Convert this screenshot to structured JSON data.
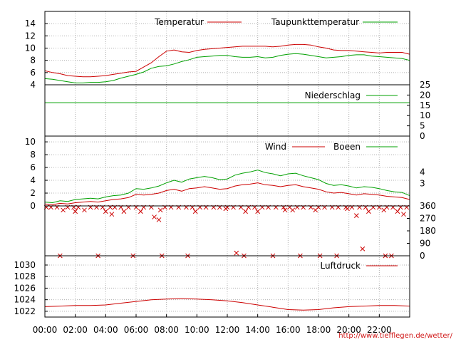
{
  "credit": "http://www.tiefflegen.de/wetter/",
  "x_ticks": [
    "00:00",
    "02:00",
    "04:00",
    "06:00",
    "08:00",
    "10:00",
    "12:00",
    "14:00",
    "16:00",
    "18:00",
    "20:00",
    "22:00"
  ],
  "colors": {
    "red": "#cc0000",
    "green": "#00a000",
    "grid": "#b0b0b0",
    "axis": "#000000"
  },
  "chart_data": [
    {
      "type": "line",
      "panel": "temperature",
      "ylim": [
        4,
        16
      ],
      "y_ticks": [
        "4",
        "6",
        "8",
        "10",
        "12",
        "14"
      ],
      "legend_placement": "top-right",
      "series": [
        {
          "name": "Temperatur",
          "color": "#cc0000",
          "x": [
            0,
            0.5,
            1,
            1.5,
            2,
            2.5,
            3,
            3.5,
            4,
            4.5,
            5,
            5.5,
            6,
            6.5,
            7,
            7.5,
            8,
            8.5,
            9,
            9.5,
            10,
            10.5,
            11,
            11.5,
            12,
            12.5,
            13,
            13.5,
            14,
            14.5,
            15,
            15.5,
            16,
            16.5,
            17,
            17.5,
            18,
            18.5,
            19,
            19.5,
            20,
            20.5,
            21,
            21.5,
            22,
            22.5,
            23,
            23.5,
            24
          ],
          "y": [
            6.3,
            6.0,
            5.8,
            5.5,
            5.4,
            5.3,
            5.3,
            5.4,
            5.5,
            5.7,
            5.9,
            6.1,
            6.2,
            6.9,
            7.6,
            8.6,
            9.5,
            9.7,
            9.4,
            9.3,
            9.6,
            9.8,
            9.9,
            10.0,
            10.1,
            10.2,
            10.3,
            10.3,
            10.3,
            10.3,
            10.2,
            10.3,
            10.5,
            10.6,
            10.6,
            10.5,
            10.2,
            10.0,
            9.7,
            9.6,
            9.6,
            9.5,
            9.4,
            9.3,
            9.2,
            9.3,
            9.3,
            9.3,
            9.0
          ]
        },
        {
          "name": "Taupunkttemperatur",
          "color": "#00a000",
          "x": [
            0,
            0.5,
            1,
            1.5,
            2,
            2.5,
            3,
            3.5,
            4,
            4.5,
            5,
            5.5,
            6,
            6.5,
            7,
            7.5,
            8,
            8.5,
            9,
            9.5,
            10,
            10.5,
            11,
            11.5,
            12,
            12.5,
            13,
            13.5,
            14,
            14.5,
            15,
            15.5,
            16,
            16.5,
            17,
            17.5,
            18,
            18.5,
            19,
            19.5,
            20,
            20.5,
            21,
            21.5,
            22,
            22.5,
            23,
            23.5,
            24
          ],
          "y": [
            5.0,
            4.9,
            4.7,
            4.5,
            4.3,
            4.3,
            4.4,
            4.4,
            4.5,
            4.7,
            5.1,
            5.4,
            5.7,
            6.1,
            6.7,
            7.0,
            7.1,
            7.4,
            7.8,
            8.1,
            8.5,
            8.6,
            8.7,
            8.8,
            8.8,
            8.6,
            8.5,
            8.5,
            8.6,
            8.4,
            8.5,
            8.8,
            9.0,
            9.1,
            9.0,
            8.8,
            8.6,
            8.4,
            8.5,
            8.6,
            8.8,
            8.9,
            8.9,
            8.7,
            8.6,
            8.5,
            8.4,
            8.3,
            8.0
          ]
        }
      ]
    },
    {
      "type": "line",
      "panel": "precipitation",
      "ylim": [
        0,
        25
      ],
      "y_ticks_right": [
        "0",
        "5",
        "10",
        "15",
        "20",
        "25"
      ],
      "legend_placement": "top-right",
      "series": [
        {
          "name": "Niederschlag",
          "color": "#00a000",
          "x": [
            0,
            24
          ],
          "y": [
            16.3,
            16.3
          ]
        }
      ]
    },
    {
      "type": "line",
      "panel": "wind",
      "ylim": [
        0,
        10
      ],
      "y_ticks": [
        "0",
        "2",
        "4",
        "6",
        "8",
        "10"
      ],
      "y_ticks_right": [
        "3",
        "4"
      ],
      "legend_placement": "top-right",
      "series": [
        {
          "name": "Wind",
          "color": "#cc0000",
          "x": [
            0,
            0.5,
            1,
            1.5,
            2,
            2.5,
            3,
            3.5,
            4,
            4.5,
            5,
            5.5,
            6,
            6.5,
            7,
            7.5,
            8,
            8.5,
            9,
            9.5,
            10,
            10.5,
            11,
            11.5,
            12,
            12.5,
            13,
            13.5,
            14,
            14.5,
            15,
            15.5,
            16,
            16.5,
            17,
            17.5,
            18,
            18.5,
            19,
            19.5,
            20,
            20.5,
            21,
            21.5,
            22,
            22.5,
            23,
            23.5,
            24
          ],
          "y": [
            0.3,
            0.2,
            0.4,
            0.3,
            0.5,
            0.6,
            0.7,
            0.6,
            0.8,
            1.0,
            1.1,
            1.3,
            1.8,
            1.7,
            1.8,
            2.0,
            2.4,
            2.6,
            2.3,
            2.7,
            2.8,
            3.0,
            2.8,
            2.6,
            2.7,
            3.1,
            3.3,
            3.4,
            3.6,
            3.3,
            3.2,
            3.0,
            3.2,
            3.3,
            3.0,
            2.8,
            2.6,
            2.2,
            2.0,
            2.1,
            1.9,
            1.7,
            1.9,
            1.8,
            1.7,
            1.5,
            1.4,
            1.3,
            1.0
          ]
        },
        {
          "name": "Boeen",
          "color": "#00a000",
          "x": [
            0,
            0.5,
            1,
            1.5,
            2,
            2.5,
            3,
            3.5,
            4,
            4.5,
            5,
            5.5,
            6,
            6.5,
            7,
            7.5,
            8,
            8.5,
            9,
            9.5,
            10,
            10.5,
            11,
            11.5,
            12,
            12.5,
            13,
            13.5,
            14,
            14.5,
            15,
            15.5,
            16,
            16.5,
            17,
            17.5,
            18,
            18.5,
            19,
            19.5,
            20,
            20.5,
            21,
            21.5,
            22,
            22.5,
            23,
            23.5,
            24
          ],
          "y": [
            0.6,
            0.5,
            0.8,
            0.7,
            1.0,
            1.1,
            1.2,
            1.1,
            1.4,
            1.6,
            1.7,
            2.0,
            2.7,
            2.6,
            2.8,
            3.1,
            3.6,
            4.0,
            3.7,
            4.2,
            4.4,
            4.6,
            4.4,
            4.1,
            4.2,
            4.8,
            5.1,
            5.3,
            5.6,
            5.2,
            5.0,
            4.7,
            5.0,
            5.1,
            4.7,
            4.4,
            4.1,
            3.5,
            3.2,
            3.3,
            3.1,
            2.8,
            3.0,
            2.9,
            2.7,
            2.4,
            2.2,
            2.1,
            1.6
          ]
        }
      ]
    },
    {
      "type": "scatter",
      "panel": "wind_direction",
      "ylim": [
        0,
        360
      ],
      "y_ticks_right": [
        "0",
        "90",
        "180",
        "270",
        "360"
      ],
      "series": [
        {
          "name": "",
          "color": "#cc0000",
          "marker": "x",
          "x": [
            0.1,
            0.4,
            0.8,
            1.2,
            1.5,
            1.9,
            2.2,
            2.6,
            3.0,
            3.4,
            3.8,
            4.3,
            4.6,
            5.0,
            5.5,
            6.0,
            6.5,
            7.0,
            7.6,
            7.9,
            8.3,
            8.8,
            9.3,
            9.7,
            10.2,
            10.6,
            11.1,
            11.5,
            12.0,
            12.4,
            12.9,
            13.4,
            13.8,
            14.3,
            14.7,
            15.2,
            15.7,
            16.1,
            16.6,
            17.0,
            17.5,
            18.0,
            18.4,
            18.9,
            19.3,
            19.8,
            20.2,
            20.7,
            21.1,
            21.6,
            22.0,
            22.5,
            22.9,
            23.4,
            23.8,
            2.0,
            4.0,
            4.4,
            5.2,
            6.3,
            7.2,
            7.5,
            9.9,
            11.9,
            13.2,
            14.0,
            15.8,
            16.3,
            17.8,
            19.9,
            20.5,
            21.3,
            22.3,
            23.2,
            23.6,
            1.0,
            3.5,
            5.8,
            7.7,
            9.4,
            12.6,
            13.1,
            15.0,
            16.8,
            18.1,
            19.2,
            20.9,
            22.4,
            22.8
          ],
          "y": [
            350,
            350,
            350,
            330,
            350,
            350,
            350,
            330,
            350,
            350,
            350,
            350,
            350,
            350,
            350,
            350,
            350,
            350,
            330,
            350,
            350,
            350,
            350,
            350,
            350,
            350,
            350,
            350,
            350,
            350,
            350,
            350,
            350,
            350,
            350,
            350,
            350,
            350,
            350,
            350,
            350,
            350,
            350,
            350,
            350,
            350,
            350,
            350,
            350,
            350,
            350,
            350,
            350,
            350,
            350,
            320,
            320,
            300,
            320,
            320,
            280,
            260,
            320,
            340,
            320,
            320,
            330,
            330,
            330,
            340,
            290,
            320,
            330,
            320,
            300,
            0,
            0,
            0,
            0,
            0,
            20,
            0,
            0,
            0,
            0,
            0,
            50,
            0,
            0
          ]
        }
      ]
    },
    {
      "type": "line",
      "panel": "pressure",
      "ylim": [
        1021,
        1031
      ],
      "y_ticks": [
        "1022",
        "1024",
        "1026",
        "1028",
        "1030"
      ],
      "legend_placement": "top-right",
      "series": [
        {
          "name": "Luftdruck",
          "color": "#cc0000",
          "x": [
            0,
            1,
            2,
            3,
            4,
            5,
            6,
            7,
            8,
            9,
            10,
            11,
            12,
            13,
            14,
            15,
            16,
            17,
            18,
            19,
            20,
            21,
            22,
            23,
            24
          ],
          "y": [
            1022.8,
            1022.9,
            1023.0,
            1023.0,
            1023.1,
            1023.4,
            1023.7,
            1024.0,
            1024.1,
            1024.2,
            1024.1,
            1024.0,
            1023.8,
            1023.5,
            1023.1,
            1022.7,
            1022.3,
            1022.2,
            1022.3,
            1022.6,
            1022.8,
            1022.9,
            1023.0,
            1023.0,
            1022.9
          ]
        }
      ]
    }
  ]
}
